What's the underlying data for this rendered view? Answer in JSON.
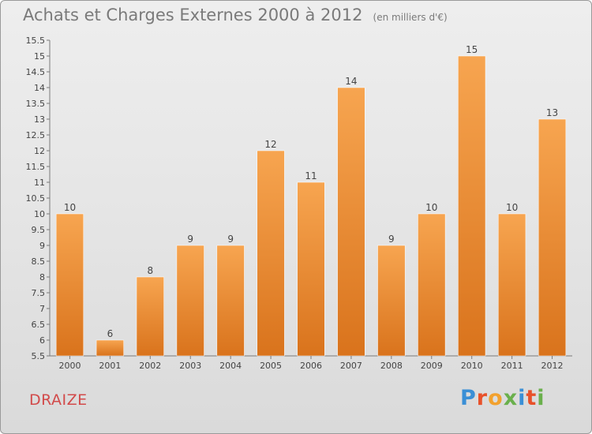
{
  "header": {
    "title": "Achats et Charges Externes 2000 à 2012",
    "unit_note": "(en milliers d'€)"
  },
  "footer": {
    "commune": "DRAIZE",
    "logo_text": "Proxiti",
    "logo_letters": [
      {
        "char": "P",
        "color": "#3a8fd6"
      },
      {
        "char": "r",
        "color": "#e8512a"
      },
      {
        "char": "o",
        "color": "#f2a12e"
      },
      {
        "char": "x",
        "color": "#6ab04c"
      },
      {
        "char": "i",
        "color": "#3a8fd6"
      },
      {
        "char": "t",
        "color": "#e8512a"
      },
      {
        "char": "i",
        "color": "#6ab04c"
      }
    ]
  },
  "colors": {
    "bar_top": "#f7a550",
    "bar_bottom": "#d9731c",
    "axis": "#7a7a7a",
    "text": "#444444",
    "title": "#7a7a7a",
    "commune": "#d24a4a"
  },
  "chart_data": {
    "type": "bar",
    "title": "Achats et Charges Externes 2000 à 2012",
    "subtitle": "(en milliers d'€)",
    "xlabel": "",
    "ylabel": "",
    "categories": [
      "2000",
      "2001",
      "2002",
      "2003",
      "2004",
      "2005",
      "2006",
      "2007",
      "2008",
      "2009",
      "2010",
      "2011",
      "2012"
    ],
    "values": [
      10,
      6,
      8,
      9,
      9,
      12,
      11,
      14,
      9,
      10,
      15,
      10,
      13
    ],
    "data_labels": [
      "10",
      "6",
      "8",
      "9",
      "9",
      "12",
      "11",
      "14",
      "9",
      "10",
      "15",
      "10",
      "13"
    ],
    "ylim": [
      5.5,
      15.5
    ],
    "yticks": [
      5.5,
      6,
      6.5,
      7,
      7.5,
      8,
      8.5,
      9,
      9.5,
      10,
      10.5,
      11,
      11.5,
      12,
      12.5,
      13,
      13.5,
      14,
      14.5,
      15,
      15.5
    ],
    "ytick_labels": [
      "5.5",
      "6",
      "6.5",
      "7",
      "7.5",
      "8",
      "8.5",
      "9",
      "9.5",
      "10",
      "10.5",
      "11",
      "11.5",
      "12",
      "12.5",
      "13",
      "13.5",
      "14",
      "14.5",
      "15",
      "15.5"
    ],
    "grid": false,
    "legend": "none"
  }
}
